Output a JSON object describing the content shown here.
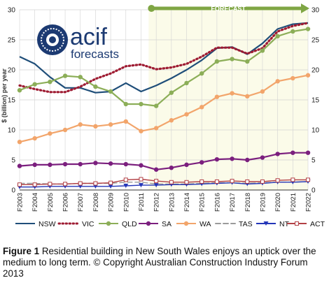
{
  "logo": {
    "brand": "acif",
    "sub": "forecasts"
  },
  "caption": {
    "figure_label": "Figure 1",
    "text": " Residential building in New South Wales enjoys an uptick over the medium to long term. © Copyright Australian Construction Industry Forum 2013"
  },
  "colors": {
    "forecast_bg": "#fbfbe9",
    "forecast_arrow": "#7fa644",
    "grid": "#d2d2d2"
  },
  "chart_data": {
    "type": "line",
    "title": "",
    "ylabel": "$ (billion) per year",
    "xlabel": "",
    "ylim": [
      0,
      30
    ],
    "yticks": [
      0,
      5,
      10,
      15,
      20,
      25,
      30
    ],
    "grid": true,
    "legend_position": "bottom",
    "annotation": "FORECAST",
    "forecast_start": "F2012",
    "categories": [
      "F2003",
      "F2004",
      "F2005",
      "F2006",
      "F2007",
      "F2008",
      "F2009",
      "F2010",
      "F2011",
      "F2012",
      "F2013",
      "F2014",
      "F2015",
      "F2016",
      "F2017",
      "F2018",
      "F2019",
      "F2020",
      "F2021",
      "F2022"
    ],
    "series": [
      {
        "name": "NSW",
        "color": "#1f4e79",
        "style": "solid",
        "marker": "none",
        "values": [
          22.2,
          21.0,
          18.8,
          17.0,
          17.0,
          16.2,
          16.4,
          17.8,
          16.4,
          17.4,
          18.6,
          20.0,
          21.6,
          23.6,
          23.8,
          22.6,
          24.4,
          26.8,
          27.6,
          27.8
        ]
      },
      {
        "name": "VIC",
        "color": "#9e1b32",
        "style": "dotted",
        "marker": "none",
        "values": [
          17.4,
          16.8,
          16.3,
          16.3,
          17.2,
          18.5,
          19.4,
          20.6,
          20.9,
          20.1,
          20.4,
          21.0,
          22.2,
          23.7,
          23.7,
          22.7,
          23.6,
          26.4,
          27.3,
          27.8
        ]
      },
      {
        "name": "QLD",
        "color": "#8cae58",
        "style": "solid",
        "marker": "circle",
        "values": [
          16.6,
          17.6,
          18.0,
          19.0,
          18.8,
          17.2,
          16.4,
          14.3,
          14.3,
          14.0,
          16.2,
          17.8,
          19.4,
          21.4,
          21.8,
          21.4,
          23.2,
          25.6,
          26.4,
          26.8
        ]
      },
      {
        "name": "SA",
        "color": "#7b1f7e",
        "style": "solid",
        "marker": "circle",
        "values": [
          4.0,
          4.2,
          4.2,
          4.3,
          4.3,
          4.5,
          4.4,
          4.3,
          4.1,
          3.4,
          3.7,
          4.2,
          4.6,
          5.1,
          5.2,
          5.0,
          5.4,
          6.0,
          6.2,
          6.2
        ]
      },
      {
        "name": "WA",
        "color": "#f2a56b",
        "style": "solid",
        "marker": "circle",
        "values": [
          8.0,
          8.6,
          9.4,
          10.0,
          10.9,
          10.6,
          10.9,
          11.4,
          9.8,
          10.3,
          11.6,
          12.6,
          13.8,
          15.5,
          16.1,
          15.6,
          16.4,
          18.1,
          18.6,
          19.1
        ]
      },
      {
        "name": "TAS",
        "color": "#9a9a9a",
        "style": "dashed",
        "marker": "none",
        "values": [
          1.1,
          1.1,
          1.0,
          1.0,
          1.1,
          1.1,
          1.1,
          1.3,
          1.3,
          1.0,
          1.0,
          1.0,
          1.1,
          1.2,
          1.2,
          1.1,
          1.2,
          1.3,
          1.3,
          1.4
        ]
      },
      {
        "name": "NT",
        "color": "#2436b8",
        "style": "solid",
        "marker": "triangle",
        "values": [
          0.5,
          0.5,
          0.6,
          0.6,
          0.6,
          0.6,
          0.6,
          0.7,
          0.8,
          0.8,
          0.9,
          0.9,
          1.0,
          1.1,
          1.2,
          1.0,
          1.1,
          1.3,
          1.3,
          1.4
        ]
      },
      {
        "name": "ACT",
        "color": "#b24045",
        "style": "solid",
        "marker": "square",
        "values": [
          0.9,
          0.9,
          1.0,
          1.0,
          1.1,
          1.1,
          1.2,
          1.7,
          1.8,
          1.5,
          1.3,
          1.3,
          1.4,
          1.4,
          1.5,
          1.4,
          1.4,
          1.6,
          1.7,
          1.7
        ]
      }
    ]
  }
}
